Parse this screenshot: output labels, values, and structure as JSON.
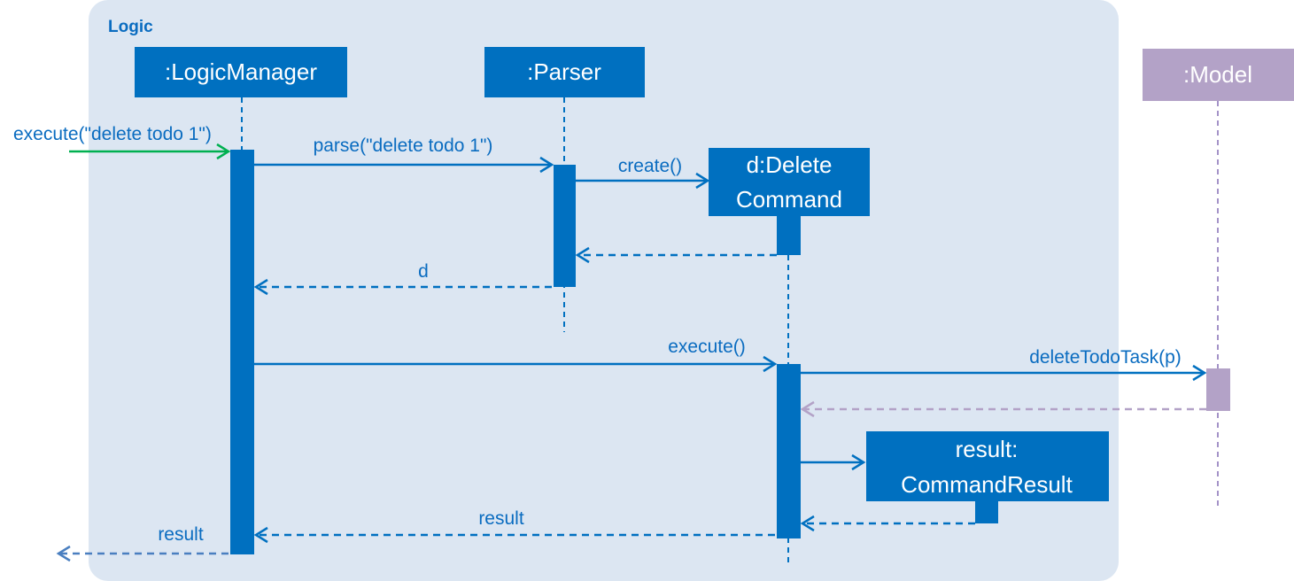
{
  "frame": {
    "title": "Logic"
  },
  "participants": {
    "logic_manager": ":LogicManager",
    "parser": ":Parser",
    "delete_command": {
      "line1": "d:Delete",
      "line2": "Command"
    },
    "model": ":Model",
    "command_result": {
      "line1": "result:",
      "line2": "CommandResult"
    }
  },
  "messages": {
    "execute_in": "execute(\"delete todo 1\")",
    "parse": "parse(\"delete todo 1\")",
    "create": "create()",
    "return_d": "d",
    "execute": "execute()",
    "delete_todo_task": "deleteTodoTask(p)",
    "return_result_inner": "result",
    "return_result_outer": "result"
  },
  "colors": {
    "frame_bg": "#dce6f2",
    "primary": "#0070c0",
    "label": "#0a6cc0",
    "model": "#b3a2c7",
    "model_line": "#a493c8",
    "found_arrow": "#00b050",
    "outer_return": "#4a7fc0",
    "box_text": "#ffffff"
  },
  "icons": {
    "arrowhead": "open-arrowhead"
  }
}
